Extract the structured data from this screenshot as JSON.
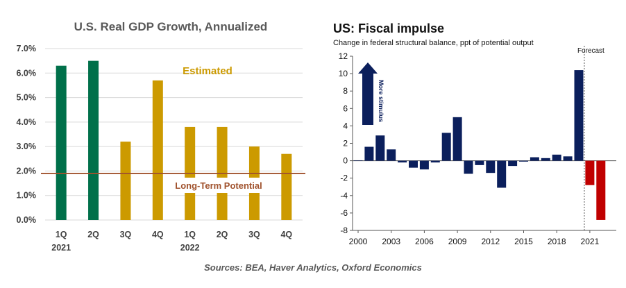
{
  "chart_data": [
    {
      "type": "bar",
      "title": "U.S. Real GDP Growth,  Annualized",
      "quarters": [
        "1Q",
        "2Q",
        "3Q",
        "4Q",
        "1Q",
        "2Q",
        "3Q",
        "4Q"
      ],
      "years": [
        "2021",
        "",
        "",
        "",
        "2022",
        "",
        "",
        ""
      ],
      "values": [
        6.3,
        6.5,
        3.2,
        5.7,
        3.8,
        3.8,
        3.0,
        2.7
      ],
      "estimated": [
        false,
        false,
        true,
        true,
        true,
        true,
        true,
        true
      ],
      "ylim": [
        0,
        7
      ],
      "yticks": [
        "0.0%",
        "1.0%",
        "2.0%",
        "3.0%",
        "4.0%",
        "5.0%",
        "6.0%",
        "7.0%"
      ],
      "ytick_values": [
        0,
        1,
        2,
        3,
        4,
        5,
        6,
        7
      ],
      "reference_line": {
        "value": 1.9,
        "label": "Long-Term Potential"
      },
      "annotation": "Estimated",
      "grid": true,
      "colors": {
        "actual": "#00704A",
        "estimated": "#CC9A00",
        "reference": "#A0522D",
        "grid": "#D9D9D9"
      }
    },
    {
      "type": "bar",
      "title": "US: Fiscal impulse",
      "subtitle": "Change in federal structural balance, ppt of potential output",
      "x": [
        2000,
        2001,
        2002,
        2003,
        2004,
        2005,
        2006,
        2007,
        2008,
        2009,
        2010,
        2011,
        2012,
        2013,
        2014,
        2015,
        2016,
        2017,
        2018,
        2019,
        2020,
        2021,
        2022
      ],
      "values": [
        0.05,
        1.6,
        2.9,
        1.3,
        -0.2,
        -0.8,
        -1.0,
        -0.2,
        3.2,
        5.0,
        -1.5,
        -0.5,
        -1.4,
        -3.1,
        -0.6,
        -0.1,
        0.4,
        0.3,
        0.7,
        0.5,
        10.4,
        -2.8,
        -6.8
      ],
      "forecast": [
        false,
        false,
        false,
        false,
        false,
        false,
        false,
        false,
        false,
        false,
        false,
        false,
        false,
        false,
        false,
        false,
        false,
        false,
        false,
        false,
        false,
        true,
        true
      ],
      "xticks": [
        "2000",
        "2003",
        "2006",
        "2009",
        "2012",
        "2015",
        "2018",
        "2021"
      ],
      "xtick_values": [
        2000,
        2003,
        2006,
        2009,
        2012,
        2015,
        2018,
        2021
      ],
      "ylim": [
        -8,
        12
      ],
      "yticks": [
        "-8",
        "-6",
        "-4",
        "-2",
        "0",
        "2",
        "4",
        "6",
        "8",
        "10",
        "12"
      ],
      "ytick_values": [
        -8,
        -6,
        -4,
        -2,
        0,
        2,
        4,
        6,
        8,
        10,
        12
      ],
      "forecast_label": "Forecast",
      "arrow_label": "More stimulus",
      "grid": false,
      "colors": {
        "actual": "#0B1F5C",
        "forecast": "#C00000",
        "divider": "#595959"
      }
    }
  ],
  "sources": "Sources: BEA, Haver Analytics, Oxford Economics"
}
